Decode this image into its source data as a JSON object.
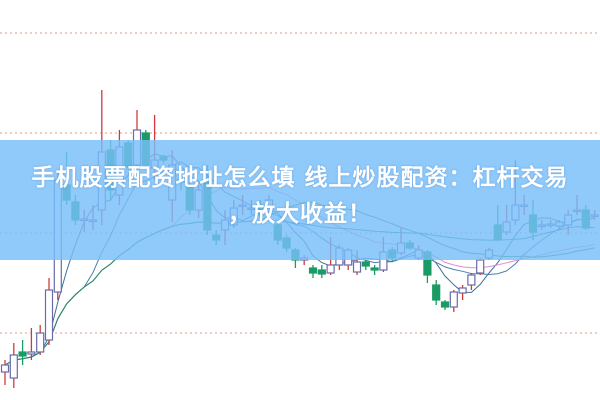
{
  "headline": {
    "line1": "手机股票配资地址怎么填 线上炒股配资：杠杆交易",
    "line2": "，放大收益！"
  },
  "colors": {
    "banner": "#78befa",
    "up": "#d23a3a",
    "up_hollow": "#6a6aa8",
    "down": "#1a9a64",
    "grid": "#d0a090"
  },
  "chart_data": {
    "type": "candlestick",
    "grid": true,
    "ylim": [
      0,
      40
    ],
    "moving_averages": [
      {
        "period": 5,
        "color": "#3a6fa0"
      },
      {
        "period": 10,
        "color": "#4a80b0"
      },
      {
        "period": 20,
        "color": "#e58ad6"
      },
      {
        "period": 30,
        "color": "#3a8a3a"
      },
      {
        "period": 60,
        "color": "#2a8a7a"
      }
    ],
    "ohlc": [
      [
        2.8,
        4.0,
        1.5,
        3.5
      ],
      [
        2.2,
        5.7,
        1.2,
        4.5
      ],
      [
        4.8,
        6.0,
        3.5,
        4.4
      ],
      [
        4.6,
        7.2,
        4.0,
        4.8
      ],
      [
        4.8,
        7.5,
        4.5,
        6.7
      ],
      [
        6.0,
        12.2,
        5.5,
        11.0
      ],
      [
        10.8,
        23.0,
        10.0,
        22.0
      ],
      [
        21.5,
        24.8,
        19.5,
        20.0
      ],
      [
        19.8,
        20.5,
        17.5,
        18.0
      ],
      [
        18.0,
        19.0,
        16.8,
        18.1
      ],
      [
        18.0,
        19.5,
        17.0,
        18.0
      ],
      [
        19.0,
        31.0,
        17.5,
        24.8
      ],
      [
        25.0,
        26.0,
        20.0,
        21.0
      ],
      [
        20.5,
        27.0,
        19.5,
        25.3
      ],
      [
        25.7,
        26.0,
        23.0,
        23.3
      ],
      [
        23.5,
        29.0,
        23.0,
        27.0
      ],
      [
        26.7,
        27.0,
        23.2,
        23.5
      ],
      [
        23.2,
        28.5,
        22.0,
        24.0
      ],
      [
        24.3,
        24.5,
        23.7,
        24.0
      ],
      [
        20.0,
        25.0,
        17.8,
        23.5
      ],
      [
        22.0,
        23.0,
        21.0,
        21.8
      ],
      [
        21.5,
        23.0,
        18.5,
        19.0
      ],
      [
        19.0,
        21.5,
        18.2,
        21.0
      ],
      [
        22.2,
        23.5,
        16.5,
        17.0
      ],
      [
        16.5,
        17.0,
        15.5,
        16.0
      ],
      [
        17.0,
        19.0,
        15.5,
        18.0
      ],
      [
        17.5,
        20.0,
        17.2,
        19.2
      ],
      [
        19.5,
        20.5,
        18.5,
        19.5
      ],
      [
        19.2,
        20.0,
        18.5,
        19.2
      ],
      [
        19.5,
        20.0,
        18.0,
        18.5
      ],
      [
        18.8,
        20.5,
        18.5,
        20.0
      ],
      [
        17.5,
        18.0,
        15.5,
        16.0
      ],
      [
        16.2,
        16.5,
        14.8,
        15.2
      ],
      [
        15.0,
        15.2,
        13.2,
        14.0
      ],
      [
        14.0,
        14.5,
        13.5,
        14.2
      ],
      [
        13.2,
        13.5,
        12.2,
        12.7
      ],
      [
        13.0,
        13.5,
        12.2,
        12.6
      ],
      [
        12.7,
        16.3,
        12.5,
        13.5
      ],
      [
        13.5,
        15.5,
        13.0,
        15.2
      ],
      [
        13.5,
        15.2,
        13.0,
        15.0
      ],
      [
        12.8,
        15.0,
        12.5,
        13.8
      ],
      [
        13.8,
        14.0,
        13.0,
        13.4
      ],
      [
        13.2,
        13.5,
        12.5,
        13.0
      ],
      [
        13.0,
        16.3,
        12.8,
        14.8
      ],
      [
        15.0,
        15.3,
        13.8,
        14.2
      ],
      [
        14.7,
        17.2,
        14.5,
        15.7
      ],
      [
        15.7,
        16.0,
        15.0,
        15.2
      ],
      [
        14.2,
        15.5,
        14.0,
        15.0
      ],
      [
        14.8,
        15.0,
        11.7,
        12.5
      ],
      [
        11.5,
        12.0,
        9.5,
        10.0
      ],
      [
        9.8,
        10.0,
        9.0,
        9.3
      ],
      [
        9.3,
        11.0,
        8.8,
        10.8
      ],
      [
        10.7,
        11.5,
        10.0,
        11.2
      ],
      [
        11.5,
        12.7,
        11.0,
        12.5
      ],
      [
        12.7,
        14.2,
        12.5,
        14.0
      ],
      [
        14.2,
        15.2,
        14.0,
        15.0
      ],
      [
        17.5,
        19.5,
        16.0,
        16.0
      ],
      [
        16.8,
        19.5,
        16.5,
        17.8
      ],
      [
        18.0,
        24.0,
        17.5,
        19.5
      ],
      [
        19.5,
        20.5,
        18.5,
        19.5
      ],
      [
        18.5,
        20.0,
        16.0,
        16.8
      ],
      [
        17.5,
        18.0,
        17.0,
        17.5
      ],
      [
        17.6,
        18.0,
        17.2,
        17.6
      ],
      [
        17.4,
        18.0,
        17.0,
        17.8
      ],
      [
        17.5,
        19.0,
        16.5,
        18.5
      ],
      [
        19.0,
        20.5,
        18.5,
        19.0
      ],
      [
        19.0,
        19.5,
        17.0,
        17.2
      ],
      [
        18.5,
        19.0,
        18.0,
        18.5
      ]
    ]
  }
}
